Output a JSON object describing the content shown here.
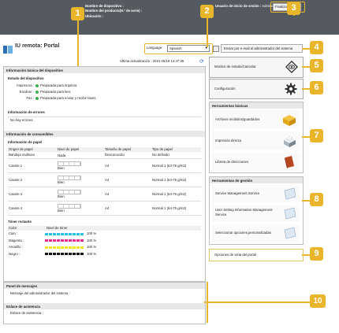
{
  "header": {
    "device_name_label": "Nombre de dispositivo :",
    "product_name_label": "Nombre del producto(N.º de serie) :",
    "location_label": "Ubicación :",
    "user_label": "Usuario de inicio de sesión :",
    "user_value": "Administrator",
    "logout_button": "Finalizar sesión",
    "app_title": "IU remota: Portal",
    "language_label": "Language:",
    "language_value": "Spanish",
    "email_button": "Enviar por e-mail al administrador del sistema",
    "last_updated": "Última actualización : 2021 06/19 14:47:35"
  },
  "device_info": {
    "title": "Información básica del dispositivo",
    "status_heading": "Estado del dispositivo",
    "statuses": [
      {
        "label": "Impresora :",
        "value": "Preparada para imprimir."
      },
      {
        "label": "Escáner :",
        "value": "Preparado para leer."
      },
      {
        "label": "Fax :",
        "value": "Preparada para enviar y recibir faxes."
      }
    ],
    "error_heading": "Información de errores",
    "error_value": "No hay errores."
  },
  "consumables": {
    "title": "Información de consumibles",
    "paper_heading": "Información de papel",
    "columns": [
      "Origen de papel",
      "Nivel de papel",
      "Tamaño de papel",
      "Tipo de papel"
    ],
    "rows": [
      {
        "source": "Bandeja multiuso",
        "level": "Nada",
        "size": "Desconocido",
        "type": "No definido",
        "level_fraction": 0
      },
      {
        "source": "Casete 1",
        "level": "Bien",
        "size": "A4",
        "type": "Normal 1 (64-75 g/m2)",
        "level_fraction": 1
      },
      {
        "source": "Casete 2",
        "level": "Bien",
        "size": "A4",
        "type": "Normal 1 (64-75 g/m2)",
        "level_fraction": 1
      },
      {
        "source": "Casete 3",
        "level": "Bien",
        "size": "A4",
        "type": "Normal 1 (64-75 g/m2)",
        "level_fraction": 1
      },
      {
        "source": "Casete 4",
        "level": "Bien",
        "size": "A4",
        "type": "Normal 1 (64-75 g/m2)",
        "level_fraction": 1
      }
    ],
    "toner_heading": "Tóner restante",
    "toner_columns": [
      "Color",
      "Nivel de tóner"
    ],
    "toners": [
      {
        "color": "Cian :",
        "percent": "100 %",
        "hex": "#27c1e6",
        "fraction": 1
      },
      {
        "color": "Magenta :",
        "percent": "100 %",
        "hex": "#e4288f",
        "fraction": 1
      },
      {
        "color": "Amarillo :",
        "percent": "100 %",
        "hex": "#f2e51c",
        "fraction": 1
      },
      {
        "color": "Negro :",
        "percent": "100 %",
        "hex": "#111111",
        "fraction": 1
      }
    ]
  },
  "messages": {
    "title": "Panel de mensajes",
    "value": "Mensaje del administrador del sistema :",
    "support_title": "Enlace de asistencia",
    "support_value": "Enlace de asistencia :"
  },
  "right": {
    "status_monitor": "Monitor de estado/Cancelar",
    "settings": "Configuración",
    "basic_tools_title": "Herramientas básicas",
    "basic_tools": [
      "Archivos recibidos/guardados",
      "Impresión directa",
      "Libreta de direcciones"
    ],
    "mgmt_tools_title": "Herramientas de gestión",
    "mgmt_tools": [
      "Service Management Service",
      "User Setting Information Management Service",
      "Seleccionar opciones personalizadas"
    ],
    "portal_options": "Opciones de vista del portal"
  },
  "badges": [
    "1",
    "2",
    "3",
    "4",
    "5",
    "6",
    "7",
    "8",
    "9",
    "10"
  ],
  "colors": {
    "badge": "#e9b52a",
    "header": "#555a60",
    "ok": "#3bb34a"
  }
}
